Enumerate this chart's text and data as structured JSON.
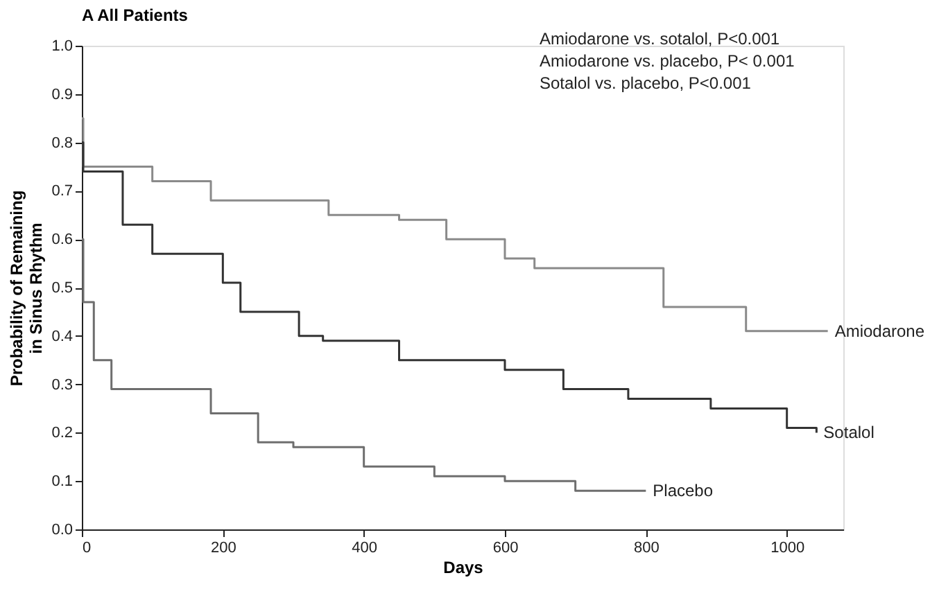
{
  "chart_data": {
    "type": "step",
    "title": "A All Patients",
    "xlabel": "Days",
    "ylabel": "Probability of Remaining\nin Sinus Rhythm",
    "xlim": [
      0,
      1080
    ],
    "xticks": [
      0,
      200,
      400,
      600,
      800,
      1000
    ],
    "ylim": [
      0,
      1
    ],
    "yticks": [
      {
        "value": 0,
        "label": "0.0"
      },
      {
        "value": 0.1,
        "label": "0.1"
      },
      {
        "value": 0.2,
        "label": "0.2"
      },
      {
        "value": 0.3,
        "label": "0.3"
      },
      {
        "value": 0.4,
        "label": "0.4"
      },
      {
        "value": 0.5,
        "label": "0.5"
      },
      {
        "value": 0.6,
        "label": "0.6"
      },
      {
        "value": 0.7,
        "label": "0.7"
      },
      {
        "value": 0.8,
        "label": "0.8"
      },
      {
        "value": 0.9,
        "label": "0.9"
      },
      {
        "value": 1,
        "label": "1.0"
      }
    ],
    "grid": false,
    "legend": false,
    "line_style": "solid",
    "series": [
      {
        "name": "Amiodarone",
        "color": "#8a8a8a",
        "x": [
          0,
          2,
          100,
          183,
          350,
          450,
          517,
          600,
          642,
          825,
          942,
          1058
        ],
        "values": [
          0.85,
          0.75,
          0.72,
          0.68,
          0.65,
          0.64,
          0.6,
          0.56,
          0.54,
          0.46,
          0.41,
          0.41
        ]
      },
      {
        "name": "Sotalol",
        "color": "#333333",
        "x": [
          0,
          2,
          58,
          100,
          200,
          225,
          308,
          342,
          450,
          600,
          683,
          775,
          892,
          1000,
          1042
        ],
        "values": [
          0.8,
          0.74,
          0.63,
          0.57,
          0.51,
          0.45,
          0.4,
          0.39,
          0.35,
          0.33,
          0.29,
          0.27,
          0.25,
          0.21,
          0.2
        ]
      },
      {
        "name": "Placebo",
        "color": "#6e6e6e",
        "x": [
          0,
          2,
          17,
          42,
          183,
          250,
          300,
          400,
          500,
          600,
          700,
          800
        ],
        "values": [
          0.6,
          0.47,
          0.35,
          0.29,
          0.24,
          0.18,
          0.17,
          0.13,
          0.11,
          0.1,
          0.08,
          0.08
        ]
      }
    ],
    "annotations": [
      "Amiodarone vs. sotalol, P<0.001",
      "Amiodarone vs. placebo, P< 0.001",
      "Sotalol vs. placebo, P<0.001"
    ]
  }
}
